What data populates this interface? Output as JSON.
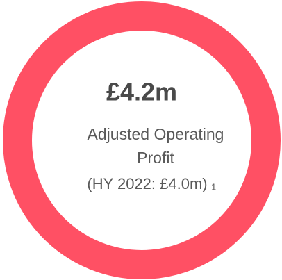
{
  "kpi": {
    "value": "£4.2m",
    "label_lines": [
      "Adjusted Operating",
      "Profit"
    ],
    "comparison": "(HY 2022:  £4.0m)",
    "footnote": "1"
  }
}
